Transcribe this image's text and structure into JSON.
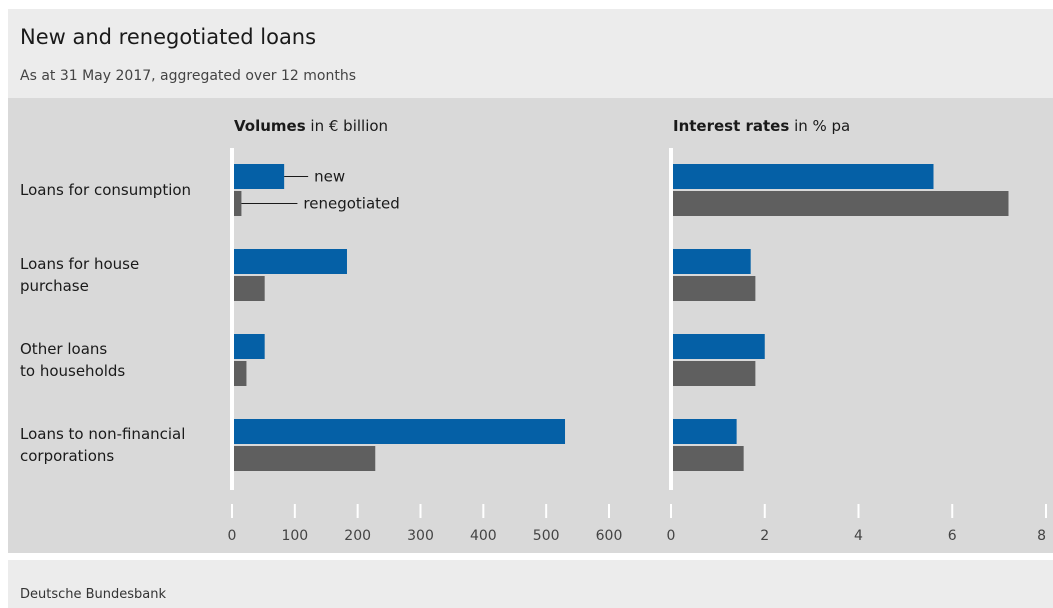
{
  "header": {
    "title": "New and renegotiated loans",
    "subtitle": "As at 31 May 2017, aggregated over 12 months"
  },
  "footer": {
    "source": "Deutsche Bundesbank"
  },
  "colors": {
    "new": "#0560a6",
    "renegotiated": "#5f5f5f",
    "panel": "#d9d9d9",
    "axis": "#ffffff"
  },
  "chart_data": [
    {
      "type": "bar",
      "orientation": "horizontal",
      "title_bold": "Volumes",
      "title_rest": " in € billion",
      "categories": [
        [
          "Loans for consumption"
        ],
        [
          "Loans for house",
          "purchase"
        ],
        [
          "Other loans",
          "to households"
        ],
        [
          "Loans to non-financial",
          "corporations"
        ]
      ],
      "series": [
        {
          "name": "new",
          "values": [
            83,
            183,
            52,
            530
          ]
        },
        {
          "name": "renegotiated",
          "values": [
            15,
            52,
            23,
            228
          ]
        }
      ],
      "xlim": [
        0,
        600
      ],
      "xticks": [
        0,
        100,
        200,
        300,
        400,
        500,
        600
      ],
      "grid": false,
      "legend": "inside-top, next to first category"
    },
    {
      "type": "bar",
      "orientation": "horizontal",
      "title_bold": "Interest rates",
      "title_rest": " in % pa",
      "series": [
        {
          "name": "new",
          "values": [
            5.6,
            1.7,
            2.0,
            1.4
          ]
        },
        {
          "name": "renegotiated",
          "values": [
            7.2,
            1.8,
            1.8,
            1.55
          ]
        }
      ],
      "xlim": [
        0,
        8
      ],
      "xticks": [
        0,
        2,
        4,
        6,
        8
      ],
      "grid": false
    }
  ]
}
